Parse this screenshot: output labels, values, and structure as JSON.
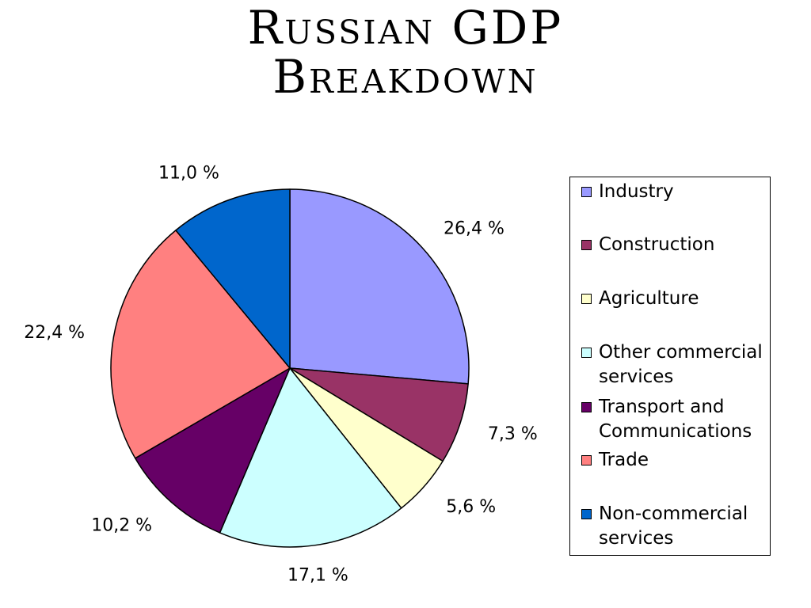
{
  "title": {
    "line1": "Russian GDP",
    "line2": "Breakdown"
  },
  "chart_data": {
    "type": "pie",
    "title": "Russian GDP Breakdown",
    "legend_position": "right",
    "start_angle_deg": 90,
    "direction": "clockwise",
    "slices": [
      {
        "label": "Industry",
        "value": 26.4,
        "value_label": "26,4 %",
        "color": "#9999FF"
      },
      {
        "label": "Construction",
        "value": 7.3,
        "value_label": "7,3 %",
        "color": "#993366"
      },
      {
        "label": "Agriculture",
        "value": 5.6,
        "value_label": "5,6 %",
        "color": "#FFFFCC"
      },
      {
        "label": "Other commercial services",
        "value": 17.1,
        "value_label": "17,1 %",
        "color": "#CCFFFF"
      },
      {
        "label": "Transport and Communications",
        "value": 10.2,
        "value_label": "10,2 %",
        "color": "#660066"
      },
      {
        "label": "Trade",
        "value": 22.4,
        "value_label": "22,4 %",
        "color": "#FF8080"
      },
      {
        "label": "Non-commercial services",
        "value": 11.0,
        "value_label": "11,0 %",
        "color": "#0066CC"
      }
    ]
  },
  "legend": {
    "items": [
      {
        "lines": [
          "Industry"
        ],
        "color": "#9999FF"
      },
      {
        "lines": [
          "Construction"
        ],
        "color": "#993366"
      },
      {
        "lines": [
          "Agriculture"
        ],
        "color": "#FFFFCC"
      },
      {
        "lines": [
          "Other commercial",
          "services"
        ],
        "color": "#CCFFFF"
      },
      {
        "lines": [
          "Transport and",
          "Communications"
        ],
        "color": "#660066"
      },
      {
        "lines": [
          "Trade"
        ],
        "color": "#FF8080"
      },
      {
        "lines": [
          "Non-commercial",
          "services"
        ],
        "color": "#0066CC"
      }
    ]
  }
}
